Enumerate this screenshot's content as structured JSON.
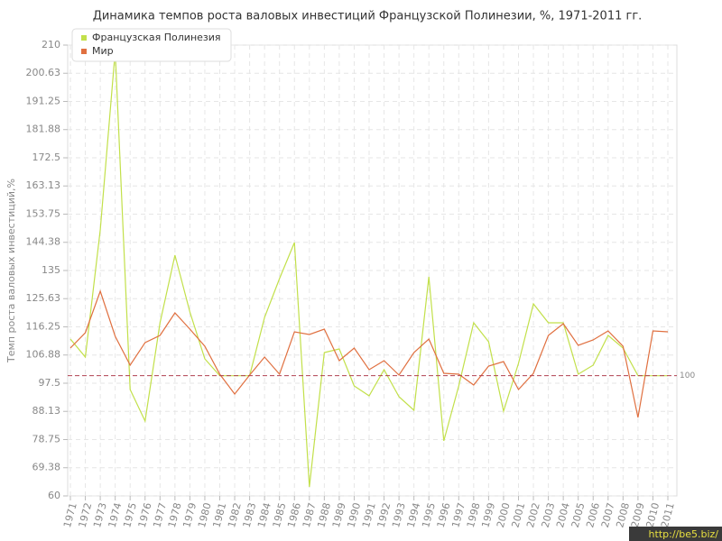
{
  "chart_data": {
    "type": "line",
    "title": "Динамика темпов роста валовых инвестиций Французской Полинезии, %, 1971-2011 гг.",
    "y_label": "Темп роста валовых инвестиций,%",
    "categories": [
      "1971",
      "1972",
      "1973",
      "1974",
      "1975",
      "1976",
      "1977",
      "1978",
      "1979",
      "1980",
      "1981",
      "1982",
      "1983",
      "1984",
      "1985",
      "1986",
      "1987",
      "1988",
      "1989",
      "1990",
      "1991",
      "1992",
      "1993",
      "1994",
      "1995",
      "1996",
      "1997",
      "1998",
      "1999",
      "2000",
      "2001",
      "2002",
      "2003",
      "2004",
      "2005",
      "2006",
      "2007",
      "2008",
      "2009",
      "2010",
      "2011"
    ],
    "series": [
      {
        "name": "Французская Полинезия",
        "color": "#c2e04a",
        "values": [
          112.2,
          106.2,
          148.5,
          208,
          95.4,
          84.9,
          117.6,
          140.1,
          121.2,
          105.6,
          100,
          100,
          100,
          119.4,
          132.3,
          144.3,
          63,
          107.7,
          108.9,
          96.6,
          93.3,
          102,
          93,
          88.5,
          132.9,
          78.3,
          96.6,
          117.6,
          111.3,
          88.2,
          104.1,
          123.9,
          117.6,
          117.6,
          100.5,
          103.5,
          113.4,
          109.2,
          100,
          100,
          100
        ]
      },
      {
        "name": "Мир",
        "color": "#e07040",
        "values": [
          109.2,
          114.3,
          128.1,
          113.1,
          103.5,
          111,
          113.4,
          120.9,
          115.5,
          109.8,
          100.5,
          93.9,
          100.2,
          106.2,
          100.5,
          114.6,
          113.7,
          115.5,
          105,
          109.2,
          102,
          105,
          100.2,
          107.7,
          112.2,
          100.8,
          100.5,
          96.9,
          103.2,
          104.7,
          95.4,
          100.8,
          113.4,
          117.3,
          110.1,
          111.9,
          114.9,
          109.8,
          86.1,
          114.9,
          114.6
        ]
      }
    ],
    "ylim": [
      60,
      210
    ],
    "yticks": [
      60,
      69.38,
      78.75,
      88.13,
      97.5,
      106.88,
      116.25,
      125.63,
      135,
      144.38,
      153.75,
      163.13,
      172.5,
      181.88,
      191.25,
      200.63,
      210
    ],
    "grid": true,
    "reference_line": 100,
    "reference_color": "#b04050",
    "legend": "top-left",
    "watermark": "http://be5.biz/"
  }
}
